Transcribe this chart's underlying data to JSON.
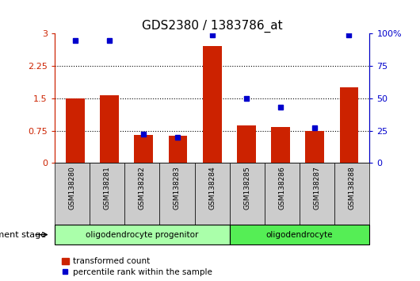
{
  "title": "GDS2380 / 1383786_at",
  "samples": [
    "GSM138280",
    "GSM138281",
    "GSM138282",
    "GSM138283",
    "GSM138284",
    "GSM138285",
    "GSM138286",
    "GSM138287",
    "GSM138288"
  ],
  "bar_values": [
    1.49,
    1.58,
    0.65,
    0.63,
    2.72,
    0.88,
    0.84,
    0.75,
    1.75
  ],
  "dot_values_pct": [
    95,
    95,
    22,
    20,
    99,
    50,
    43,
    27,
    99
  ],
  "bar_color": "#cc2200",
  "dot_color": "#0000cc",
  "ylim_left": [
    0,
    3.0
  ],
  "ylim_right": [
    0,
    100
  ],
  "yticks_left": [
    0,
    0.75,
    1.5,
    2.25,
    3.0
  ],
  "yticks_right": [
    0,
    25,
    50,
    75,
    100
  ],
  "ytick_labels_left": [
    "0",
    "0.75",
    "1.5",
    "2.25",
    "3"
  ],
  "ytick_labels_right": [
    "0",
    "25",
    "50",
    "75",
    "100%"
  ],
  "hlines": [
    0.75,
    1.5,
    2.25
  ],
  "stage_groups": [
    {
      "label": "oligodendrocyte progenitor",
      "start": 0,
      "end": 4,
      "color": "#aaffaa"
    },
    {
      "label": "oligodendrocyte",
      "start": 5,
      "end": 8,
      "color": "#55ee55"
    }
  ],
  "legend_bar_label": "transformed count",
  "legend_dot_label": "percentile rank within the sample",
  "dev_stage_label": "development stage",
  "background_color": "#ffffff",
  "tick_color_left": "#cc2200",
  "tick_color_right": "#0000cc",
  "bar_width": 0.55,
  "sample_box_color": "#cccccc",
  "figsize": [
    5.3,
    3.54
  ],
  "dpi": 100
}
